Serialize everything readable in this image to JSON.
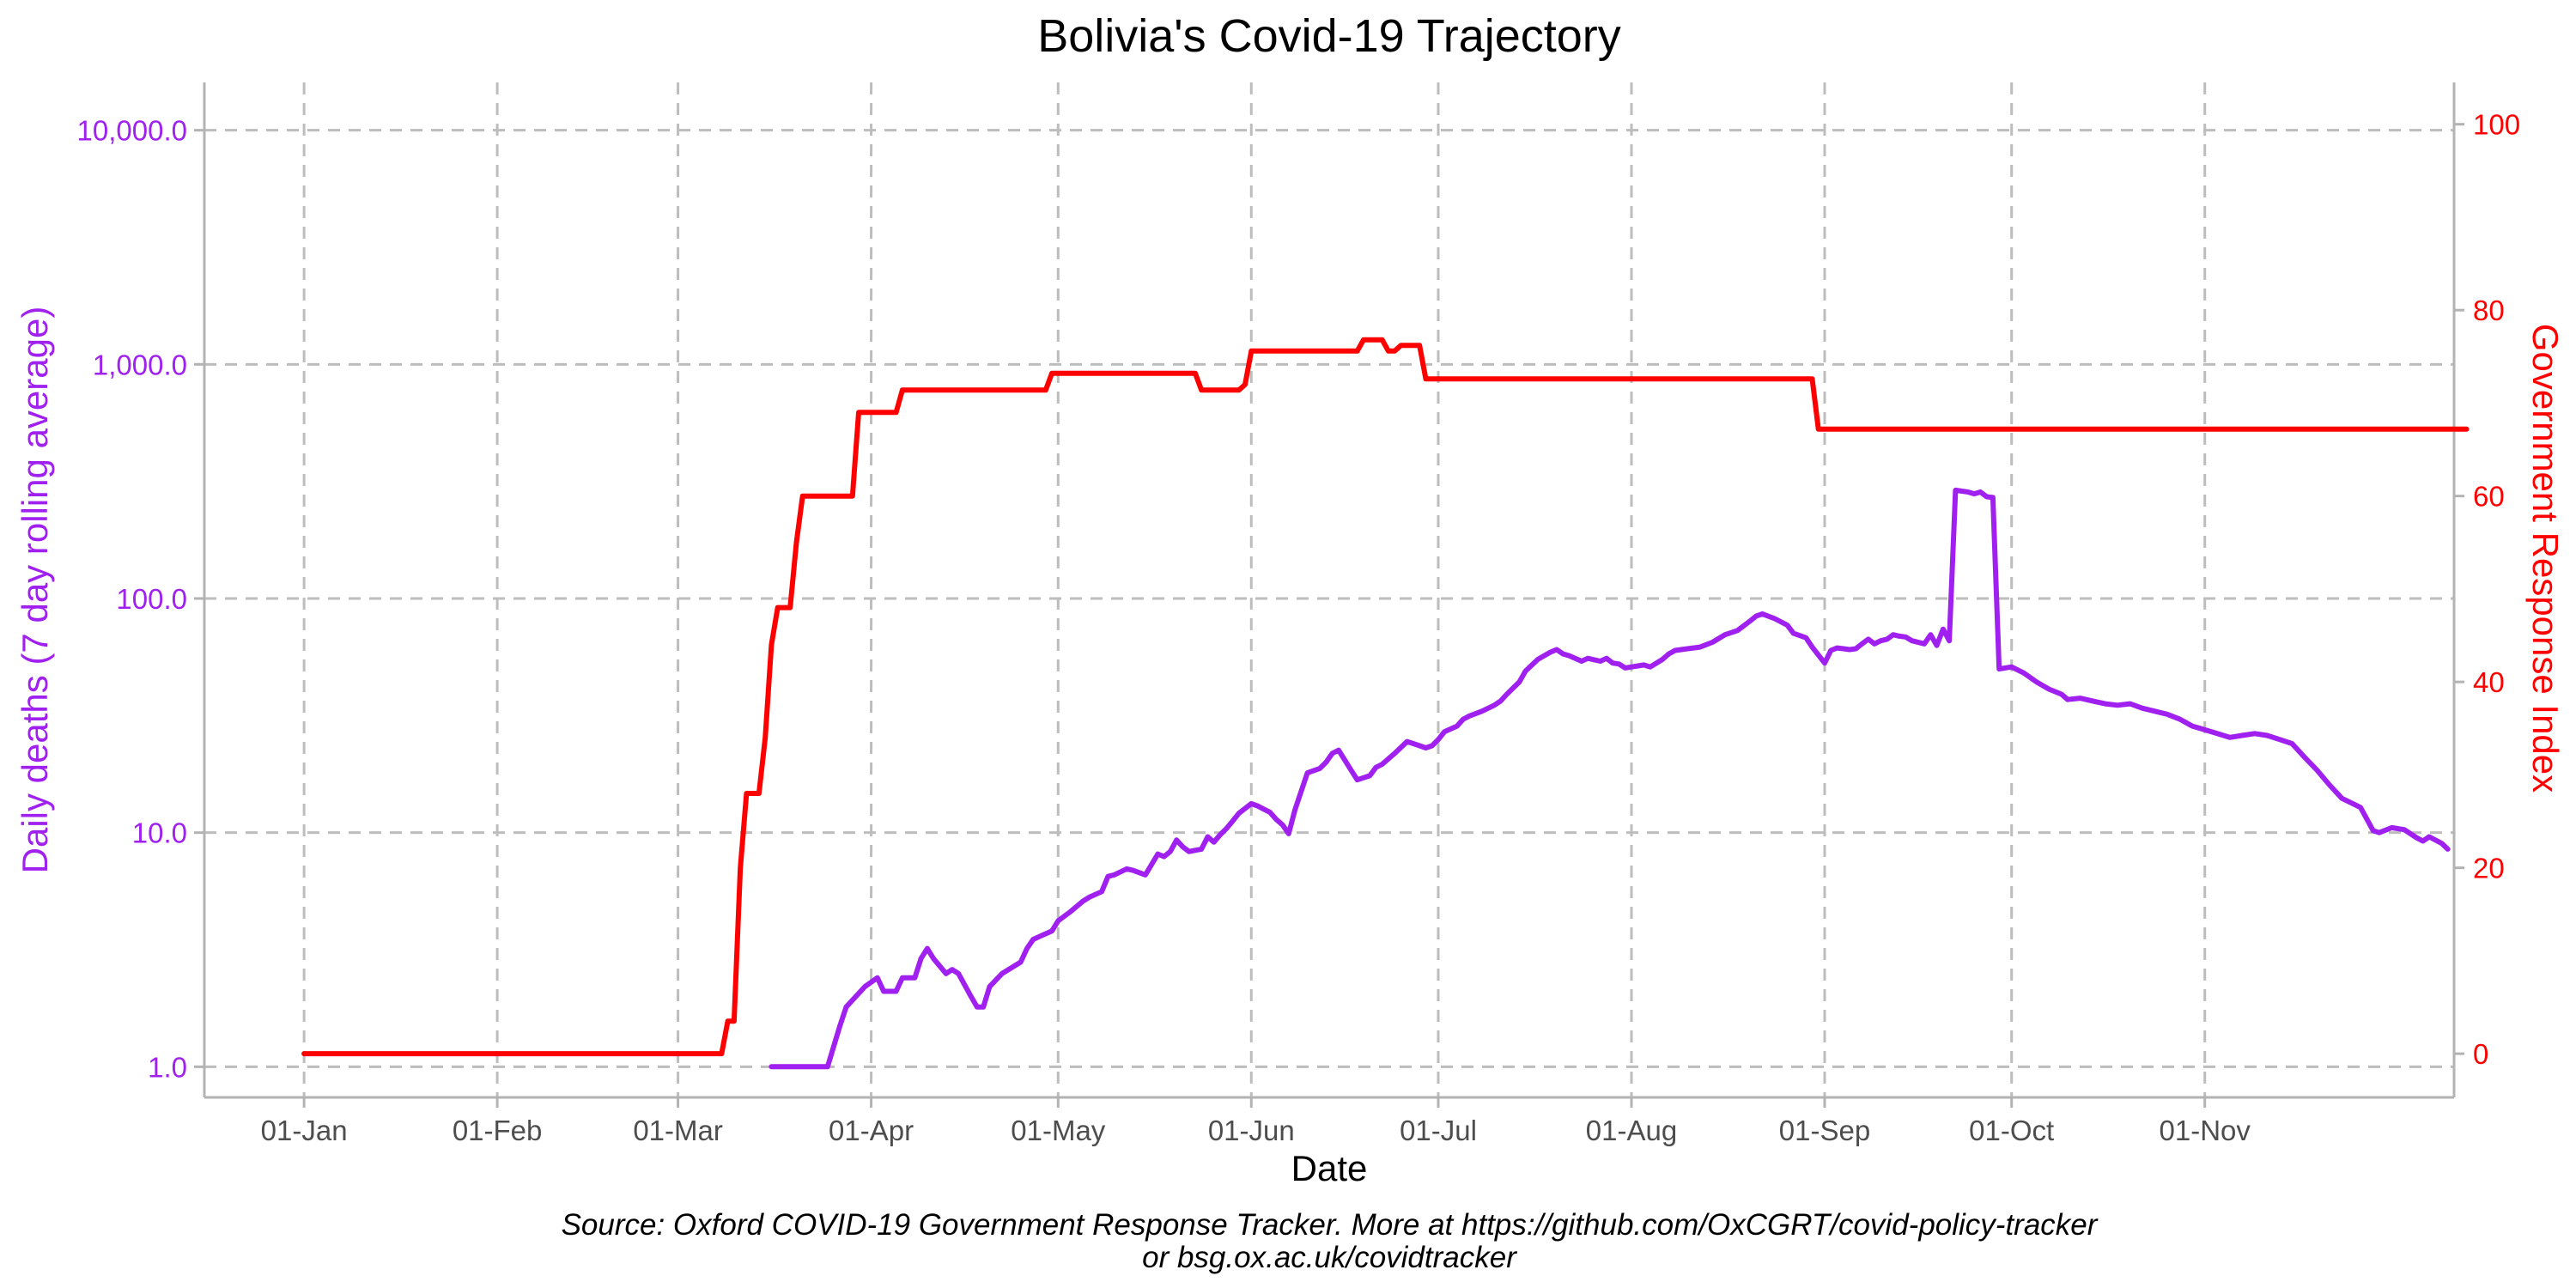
{
  "chart_data": {
    "type": "line",
    "title": "Bolivia's Covid-19 Trajectory",
    "xlabel": "Date",
    "ylabel_left": "Daily deaths (7 day rolling average)",
    "ylabel_right": "Government Response Index",
    "caption_line1": "Source: Oxford COVID-19 Government Response Tracker. More at https://github.com/OxCGRT/covid-policy-tracker",
    "caption_line2": "or bsg.ox.ac.uk/covidtracker",
    "x_ticks": [
      {
        "date": "2020-01-01",
        "label": "01-Jan"
      },
      {
        "date": "2020-02-01",
        "label": "01-Feb"
      },
      {
        "date": "2020-03-01",
        "label": "01-Mar"
      },
      {
        "date": "2020-04-01",
        "label": "01-Apr"
      },
      {
        "date": "2020-05-01",
        "label": "01-May"
      },
      {
        "date": "2020-06-01",
        "label": "01-Jun"
      },
      {
        "date": "2020-07-01",
        "label": "01-Jul"
      },
      {
        "date": "2020-08-01",
        "label": "01-Aug"
      },
      {
        "date": "2020-09-01",
        "label": "01-Sep"
      },
      {
        "date": "2020-10-01",
        "label": "01-Oct"
      },
      {
        "date": "2020-11-01",
        "label": "01-Nov"
      }
    ],
    "xlim": [
      "2019-12-16",
      "2020-12-11"
    ],
    "y_left": {
      "scale": "log10",
      "ylim": [
        0.74,
        16000
      ],
      "ticks": [
        {
          "value": 1,
          "label": "1.0"
        },
        {
          "value": 10,
          "label": "10.0"
        },
        {
          "value": 100,
          "label": "100.0"
        },
        {
          "value": 1000,
          "label": "1,000.0"
        },
        {
          "value": 10000,
          "label": "10,000.0"
        }
      ]
    },
    "y_right": {
      "scale": "linear",
      "ylim": [
        -4.7,
        104.5
      ],
      "ticks": [
        {
          "value": 0,
          "label": "0"
        },
        {
          "value": 20,
          "label": "20"
        },
        {
          "value": 40,
          "label": "40"
        },
        {
          "value": 60,
          "label": "60"
        },
        {
          "value": 80,
          "label": "80"
        },
        {
          "value": 100,
          "label": "100"
        }
      ]
    },
    "series": [
      {
        "axis": "left",
        "color": "#a020f0",
        "points": [
          [
            "2020-03-16",
            1.0
          ],
          [
            "2020-03-25",
            1.0
          ],
          [
            "2020-03-27",
            1.5
          ],
          [
            "2020-03-28",
            1.8
          ],
          [
            "2020-03-31",
            2.2
          ],
          [
            "2020-04-02",
            2.4
          ],
          [
            "2020-04-03",
            2.1
          ],
          [
            "2020-04-05",
            2.1
          ],
          [
            "2020-04-06",
            2.4
          ],
          [
            "2020-04-08",
            2.4
          ],
          [
            "2020-04-09",
            2.9
          ],
          [
            "2020-04-10",
            3.2
          ],
          [
            "2020-04-11",
            2.9
          ],
          [
            "2020-04-13",
            2.5
          ],
          [
            "2020-04-14",
            2.6
          ],
          [
            "2020-04-15",
            2.5
          ],
          [
            "2020-04-17",
            2.0
          ],
          [
            "2020-04-18",
            1.8
          ],
          [
            "2020-04-19",
            1.8
          ],
          [
            "2020-04-20",
            2.2
          ],
          [
            "2020-04-22",
            2.5
          ],
          [
            "2020-04-25",
            2.8
          ],
          [
            "2020-04-26",
            3.2
          ],
          [
            "2020-04-27",
            3.5
          ],
          [
            "2020-04-28",
            3.6
          ],
          [
            "2020-04-30",
            3.8
          ],
          [
            "2020-05-01",
            4.2
          ],
          [
            "2020-05-03",
            4.6
          ],
          [
            "2020-05-05",
            5.1
          ],
          [
            "2020-05-06",
            5.3
          ],
          [
            "2020-05-08",
            5.6
          ],
          [
            "2020-05-09",
            6.5
          ],
          [
            "2020-05-10",
            6.6
          ],
          [
            "2020-05-12",
            7.0
          ],
          [
            "2020-05-13",
            6.9
          ],
          [
            "2020-05-15",
            6.6
          ],
          [
            "2020-05-17",
            8.1
          ],
          [
            "2020-05-18",
            7.9
          ],
          [
            "2020-05-19",
            8.3
          ],
          [
            "2020-05-20",
            9.3
          ],
          [
            "2020-05-21",
            8.7
          ],
          [
            "2020-05-22",
            8.3
          ],
          [
            "2020-05-24",
            8.5
          ],
          [
            "2020-05-25",
            9.6
          ],
          [
            "2020-05-26",
            9.1
          ],
          [
            "2020-05-27",
            9.8
          ],
          [
            "2020-05-28",
            10.4
          ],
          [
            "2020-05-29",
            11.2
          ],
          [
            "2020-05-30",
            12.1
          ],
          [
            "2020-06-01",
            13.3
          ],
          [
            "2020-06-02",
            13.0
          ],
          [
            "2020-06-04",
            12.2
          ],
          [
            "2020-06-05",
            11.4
          ],
          [
            "2020-06-06",
            10.8
          ],
          [
            "2020-06-07",
            9.9
          ],
          [
            "2020-06-08",
            12.5
          ],
          [
            "2020-06-09",
            15.0
          ],
          [
            "2020-06-10",
            18.0
          ],
          [
            "2020-06-12",
            18.8
          ],
          [
            "2020-06-13",
            20.0
          ],
          [
            "2020-06-14",
            21.8
          ],
          [
            "2020-06-15",
            22.5
          ],
          [
            "2020-06-17",
            18.5
          ],
          [
            "2020-06-18",
            16.8
          ],
          [
            "2020-06-20",
            17.5
          ],
          [
            "2020-06-21",
            19.0
          ],
          [
            "2020-06-22",
            19.6
          ],
          [
            "2020-06-24",
            21.8
          ],
          [
            "2020-06-26",
            24.5
          ],
          [
            "2020-06-27",
            24.0
          ],
          [
            "2020-06-28",
            23.5
          ],
          [
            "2020-06-29",
            23.0
          ],
          [
            "2020-06-30",
            23.5
          ],
          [
            "2020-07-01",
            25.0
          ],
          [
            "2020-07-02",
            27.0
          ],
          [
            "2020-07-04",
            28.5
          ],
          [
            "2020-07-05",
            30.5
          ],
          [
            "2020-07-06",
            31.5
          ],
          [
            "2020-07-08",
            33.0
          ],
          [
            "2020-07-10",
            35.0
          ],
          [
            "2020-07-11",
            36.5
          ],
          [
            "2020-07-12",
            39.0
          ],
          [
            "2020-07-14",
            44.0
          ],
          [
            "2020-07-15",
            49.0
          ],
          [
            "2020-07-17",
            55.0
          ],
          [
            "2020-07-19",
            59.0
          ],
          [
            "2020-07-20",
            60.5
          ],
          [
            "2020-07-21",
            58.0
          ],
          [
            "2020-07-22",
            57.0
          ],
          [
            "2020-07-24",
            54.0
          ],
          [
            "2020-07-25",
            55.5
          ],
          [
            "2020-07-27",
            54.0
          ],
          [
            "2020-07-28",
            55.5
          ],
          [
            "2020-07-29",
            53.0
          ],
          [
            "2020-07-30",
            52.5
          ],
          [
            "2020-07-31",
            50.5
          ],
          [
            "2020-08-01",
            51.0
          ],
          [
            "2020-08-03",
            52.0
          ],
          [
            "2020-08-04",
            51.0
          ],
          [
            "2020-08-06",
            55.0
          ],
          [
            "2020-08-07",
            58.0
          ],
          [
            "2020-08-08",
            60.0
          ],
          [
            "2020-08-10",
            61.0
          ],
          [
            "2020-08-12",
            62.0
          ],
          [
            "2020-08-14",
            65.0
          ],
          [
            "2020-08-16",
            70.0
          ],
          [
            "2020-08-18",
            73.0
          ],
          [
            "2020-08-20",
            80.0
          ],
          [
            "2020-08-21",
            84.0
          ],
          [
            "2020-08-22",
            86.0
          ],
          [
            "2020-08-24",
            82.0
          ],
          [
            "2020-08-26",
            77.0
          ],
          [
            "2020-08-27",
            71.0
          ],
          [
            "2020-08-29",
            68.0
          ],
          [
            "2020-08-30",
            62.0
          ],
          [
            "2020-09-01",
            53.0
          ],
          [
            "2020-09-02",
            60.0
          ],
          [
            "2020-09-03",
            61.5
          ],
          [
            "2020-09-04",
            61.0
          ],
          [
            "2020-09-05",
            60.5
          ],
          [
            "2020-09-06",
            61.0
          ],
          [
            "2020-09-07",
            64.0
          ],
          [
            "2020-09-08",
            67.0
          ],
          [
            "2020-09-09",
            64.0
          ],
          [
            "2020-09-10",
            66.0
          ],
          [
            "2020-09-11",
            67.0
          ],
          [
            "2020-09-12",
            70.0
          ],
          [
            "2020-09-13",
            69.0
          ],
          [
            "2020-09-14",
            68.5
          ],
          [
            "2020-09-15",
            66.0
          ],
          [
            "2020-09-17",
            64.0
          ],
          [
            "2020-09-18",
            70.0
          ],
          [
            "2020-09-19",
            63.0
          ],
          [
            "2020-09-20",
            74.0
          ],
          [
            "2020-09-21",
            66.0
          ],
          [
            "2020-09-22",
            290.0
          ],
          [
            "2020-09-24",
            285.0
          ],
          [
            "2020-09-25",
            280.0
          ],
          [
            "2020-09-26",
            285.0
          ],
          [
            "2020-09-27",
            272.0
          ],
          [
            "2020-09-28",
            270.0
          ],
          [
            "2020-09-29",
            50.0
          ],
          [
            "2020-10-01",
            51.0
          ],
          [
            "2020-10-03",
            48.0
          ],
          [
            "2020-10-05",
            44.0
          ],
          [
            "2020-10-07",
            41.0
          ],
          [
            "2020-10-09",
            39.0
          ],
          [
            "2020-10-10",
            37.0
          ],
          [
            "2020-10-12",
            37.5
          ],
          [
            "2020-10-14",
            36.5
          ],
          [
            "2020-10-16",
            35.5
          ],
          [
            "2020-10-18",
            35.0
          ],
          [
            "2020-10-20",
            35.5
          ],
          [
            "2020-10-22",
            34.0
          ],
          [
            "2020-10-24",
            33.0
          ],
          [
            "2020-10-26",
            32.0
          ],
          [
            "2020-10-28",
            30.5
          ],
          [
            "2020-10-30",
            28.5
          ],
          [
            "2020-11-01",
            27.5
          ],
          [
            "2020-11-03",
            26.5
          ],
          [
            "2020-11-05",
            25.5
          ],
          [
            "2020-11-07",
            26.0
          ],
          [
            "2020-11-09",
            26.5
          ],
          [
            "2020-11-11",
            26.0
          ],
          [
            "2020-11-13",
            25.0
          ],
          [
            "2020-11-15",
            24.0
          ],
          [
            "2020-11-17",
            21.0
          ],
          [
            "2020-11-19",
            18.5
          ],
          [
            "2020-11-21",
            16.0
          ],
          [
            "2020-11-23",
            14.0
          ],
          [
            "2020-11-25",
            13.2
          ],
          [
            "2020-11-26",
            12.8
          ],
          [
            "2020-11-28",
            10.2
          ],
          [
            "2020-11-29",
            10.0
          ],
          [
            "2020-12-01",
            10.5
          ],
          [
            "2020-12-03",
            10.3
          ],
          [
            "2020-12-05",
            9.5
          ],
          [
            "2020-12-06",
            9.2
          ],
          [
            "2020-12-07",
            9.6
          ],
          [
            "2020-12-09",
            9.0
          ],
          [
            "2020-12-10",
            8.5
          ]
        ]
      },
      {
        "axis": "right",
        "color": "#ff0000",
        "points": [
          [
            "2020-01-01",
            0
          ],
          [
            "2020-03-08",
            0
          ],
          [
            "2020-03-09",
            3.5
          ],
          [
            "2020-03-10",
            3.5
          ],
          [
            "2020-03-11",
            20
          ],
          [
            "2020-03-12",
            28
          ],
          [
            "2020-03-14",
            28
          ],
          [
            "2020-03-15",
            34
          ],
          [
            "2020-03-16",
            44
          ],
          [
            "2020-03-17",
            48
          ],
          [
            "2020-03-19",
            48
          ],
          [
            "2020-03-20",
            55
          ],
          [
            "2020-03-21",
            60
          ],
          [
            "2020-03-29",
            60
          ],
          [
            "2020-03-30",
            69
          ],
          [
            "2020-04-05",
            69
          ],
          [
            "2020-04-06",
            71.4
          ],
          [
            "2020-04-29",
            71.4
          ],
          [
            "2020-04-30",
            73.2
          ],
          [
            "2020-05-23",
            73.2
          ],
          [
            "2020-05-24",
            71.4
          ],
          [
            "2020-05-30",
            71.4
          ],
          [
            "2020-05-31",
            72.0
          ],
          [
            "2020-06-01",
            75.6
          ],
          [
            "2020-06-18",
            75.6
          ],
          [
            "2020-06-19",
            76.8
          ],
          [
            "2020-06-22",
            76.8
          ],
          [
            "2020-06-23",
            75.6
          ],
          [
            "2020-06-24",
            75.6
          ],
          [
            "2020-06-25",
            76.2
          ],
          [
            "2020-06-28",
            76.2
          ],
          [
            "2020-06-29",
            72.6
          ],
          [
            "2020-08-30",
            72.6
          ],
          [
            "2020-08-31",
            67.2
          ],
          [
            "2020-12-13",
            67.2
          ]
        ]
      }
    ]
  }
}
